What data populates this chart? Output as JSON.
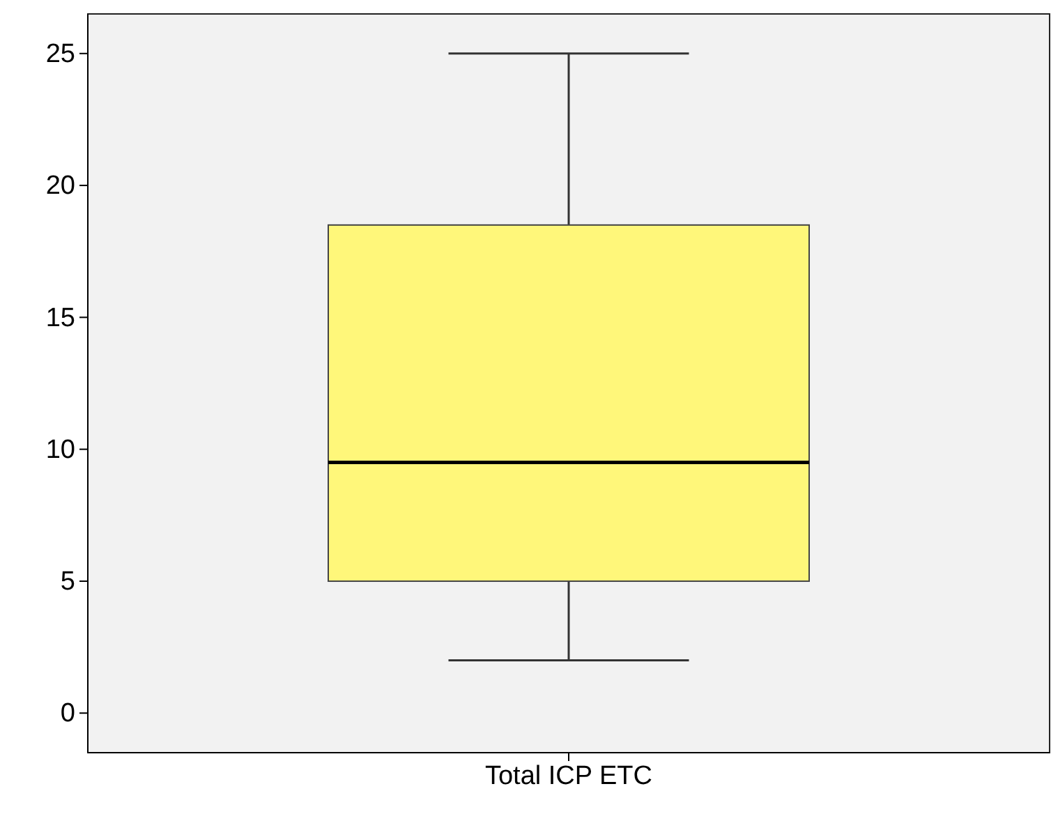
{
  "chart_data": {
    "type": "box",
    "categories": [
      "Total ICP ETC"
    ],
    "boxes": [
      {
        "low": 2,
        "q1": 5,
        "median": 9.5,
        "q3": 18.5,
        "high": 25
      }
    ],
    "color": "#fff77a",
    "ylim": [
      -1.5,
      26.5
    ],
    "yticks": [
      0,
      5,
      10,
      15,
      20,
      25
    ]
  }
}
